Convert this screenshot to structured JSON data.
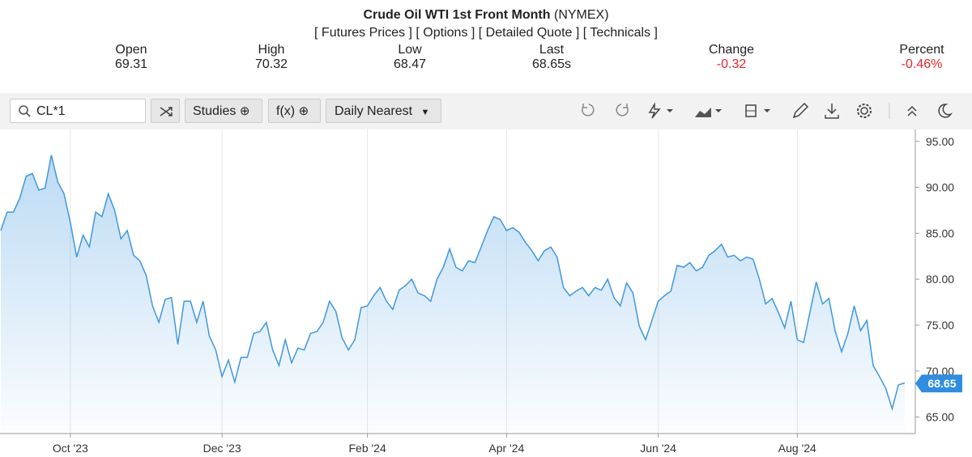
{
  "header": {
    "title": "Crude Oil WTI 1st Front Month",
    "exchange": "(NYMEX)",
    "links": [
      "[ Futures Prices ]",
      "[ Options ]",
      "[ Detailed Quote ]",
      "[ Technicals ]"
    ]
  },
  "quote": [
    {
      "label": "Open",
      "value": "69.31"
    },
    {
      "label": "High",
      "value": "70.32"
    },
    {
      "label": "Low",
      "value": "68.47"
    },
    {
      "label": "Last",
      "value": "68.65s"
    },
    {
      "label": "Change",
      "value": "-0.32"
    },
    {
      "label": "Percent",
      "value": "-0.46%"
    }
  ],
  "toolbar": {
    "symbol": "CL*1",
    "studies": "Studies",
    "fx": "f(x)",
    "period": "Daily Nearest"
  },
  "chart_data": {
    "type": "line",
    "color": "#3f97e0",
    "categories": [
      null,
      null,
      null,
      null,
      null,
      null,
      null,
      null,
      null,
      null,
      null,
      "Oct '23",
      null,
      null,
      null,
      null,
      null,
      null,
      null,
      null,
      null,
      null,
      null,
      null,
      null,
      null,
      null,
      null,
      null,
      null,
      null,
      null,
      null,
      null,
      null,
      "Dec '23",
      null,
      null,
      null,
      null,
      null,
      null,
      null,
      null,
      null,
      null,
      null,
      null,
      null,
      null,
      null,
      null,
      null,
      null,
      null,
      null,
      null,
      null,
      "Feb '24",
      null,
      null,
      null,
      null,
      null,
      null,
      null,
      null,
      null,
      null,
      null,
      null,
      null,
      null,
      null,
      null,
      null,
      null,
      null,
      null,
      null,
      "Apr '24",
      null,
      null,
      null,
      null,
      null,
      null,
      null,
      null,
      null,
      null,
      null,
      null,
      null,
      null,
      null,
      null,
      null,
      null,
      null,
      null,
      null,
      null,
      null,
      "Jun '24",
      null,
      null,
      null,
      null,
      null,
      null,
      null,
      null,
      null,
      null,
      null,
      null,
      null,
      null,
      null,
      null,
      null,
      null,
      null,
      null,
      null,
      "Aug '24",
      null,
      null,
      null,
      null,
      null,
      null,
      null,
      null,
      null,
      null,
      null,
      null,
      null,
      null,
      null,
      null,
      null
    ],
    "values": [
      85.3,
      87.3,
      87.3,
      88.8,
      91.2,
      91.5,
      89.7,
      89.9,
      93.5,
      90.6,
      89.3,
      86.2,
      82.4,
      84.8,
      83.5,
      87.3,
      86.8,
      89.3,
      87.5,
      84.4,
      85.3,
      82.6,
      82.0,
      80.4,
      77.1,
      75.3,
      77.8,
      78.0,
      72.9,
      77.6,
      77.6,
      75.3,
      77.6,
      73.8,
      72.3,
      69.4,
      71.2,
      68.8,
      71.5,
      71.5,
      74.1,
      74.3,
      75.3,
      72.3,
      70.6,
      73.4,
      70.9,
      72.5,
      72.3,
      74.1,
      74.3,
      75.3,
      77.6,
      76.5,
      73.6,
      72.3,
      73.4,
      76.9,
      77.1,
      78.2,
      79.1,
      77.6,
      76.7,
      78.8,
      79.3,
      80.0,
      78.5,
      78.2,
      77.6,
      80.0,
      81.3,
      83.3,
      81.3,
      80.9,
      82.0,
      81.8,
      83.5,
      85.3,
      86.8,
      86.5,
      85.3,
      85.6,
      85.1,
      84.0,
      83.1,
      82.0,
      83.1,
      83.5,
      82.4,
      79.1,
      78.2,
      78.7,
      79.1,
      78.2,
      79.1,
      78.8,
      80.0,
      78.0,
      77.1,
      79.6,
      78.5,
      74.9,
      73.4,
      75.5,
      77.6,
      78.2,
      78.7,
      81.5,
      81.3,
      81.8,
      80.9,
      81.3,
      82.6,
      83.1,
      83.8,
      82.4,
      82.6,
      82.0,
      82.4,
      82.2,
      80.0,
      77.3,
      77.9,
      76.4,
      74.7,
      77.6,
      73.4,
      73.1,
      76.4,
      79.7,
      77.3,
      77.9,
      74.3,
      72.1,
      74.1,
      77.1,
      74.4,
      75.5,
      70.6,
      69.4,
      68.1,
      65.9,
      68.5,
      68.7
    ],
    "ylim": [
      63.2,
      96.3
    ],
    "yticks": [
      {
        "value": 65,
        "label": "65.00"
      },
      {
        "value": 70,
        "label": "70.00"
      },
      {
        "value": 75,
        "label": "75.00"
      },
      {
        "value": 80,
        "label": "80.00"
      },
      {
        "value": 85,
        "label": "85.00"
      },
      {
        "value": 90,
        "label": "90.00"
      },
      {
        "value": 95,
        "label": "95.00"
      }
    ],
    "last_price": {
      "value": 68.65,
      "label": "68.65"
    },
    "grid": true
  }
}
